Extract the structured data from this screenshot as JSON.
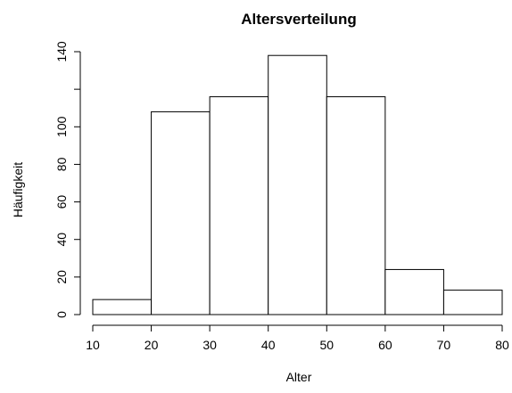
{
  "chart_data": {
    "type": "bar",
    "title": "Altersverteilung",
    "xlabel": "Alter",
    "ylabel": "Häufigkeit",
    "bins": [
      [
        10,
        20
      ],
      [
        20,
        30
      ],
      [
        30,
        40
      ],
      [
        40,
        50
      ],
      [
        50,
        60
      ],
      [
        60,
        70
      ],
      [
        70,
        80
      ]
    ],
    "values": [
      8,
      108,
      116,
      138,
      116,
      24,
      13
    ],
    "xlim": [
      10,
      80
    ],
    "ylim": [
      0,
      140
    ],
    "xticks": [
      10,
      20,
      30,
      40,
      50,
      60,
      70,
      80
    ],
    "yticks": [
      0,
      20,
      40,
      60,
      80,
      100,
      120,
      140
    ],
    "ytick_labels": [
      "0",
      "20",
      "40",
      "60",
      "80",
      "100",
      "",
      "140"
    ],
    "grid": false,
    "colors": {
      "bar_fill": "#ffffff",
      "bar_stroke": "#000000"
    }
  }
}
